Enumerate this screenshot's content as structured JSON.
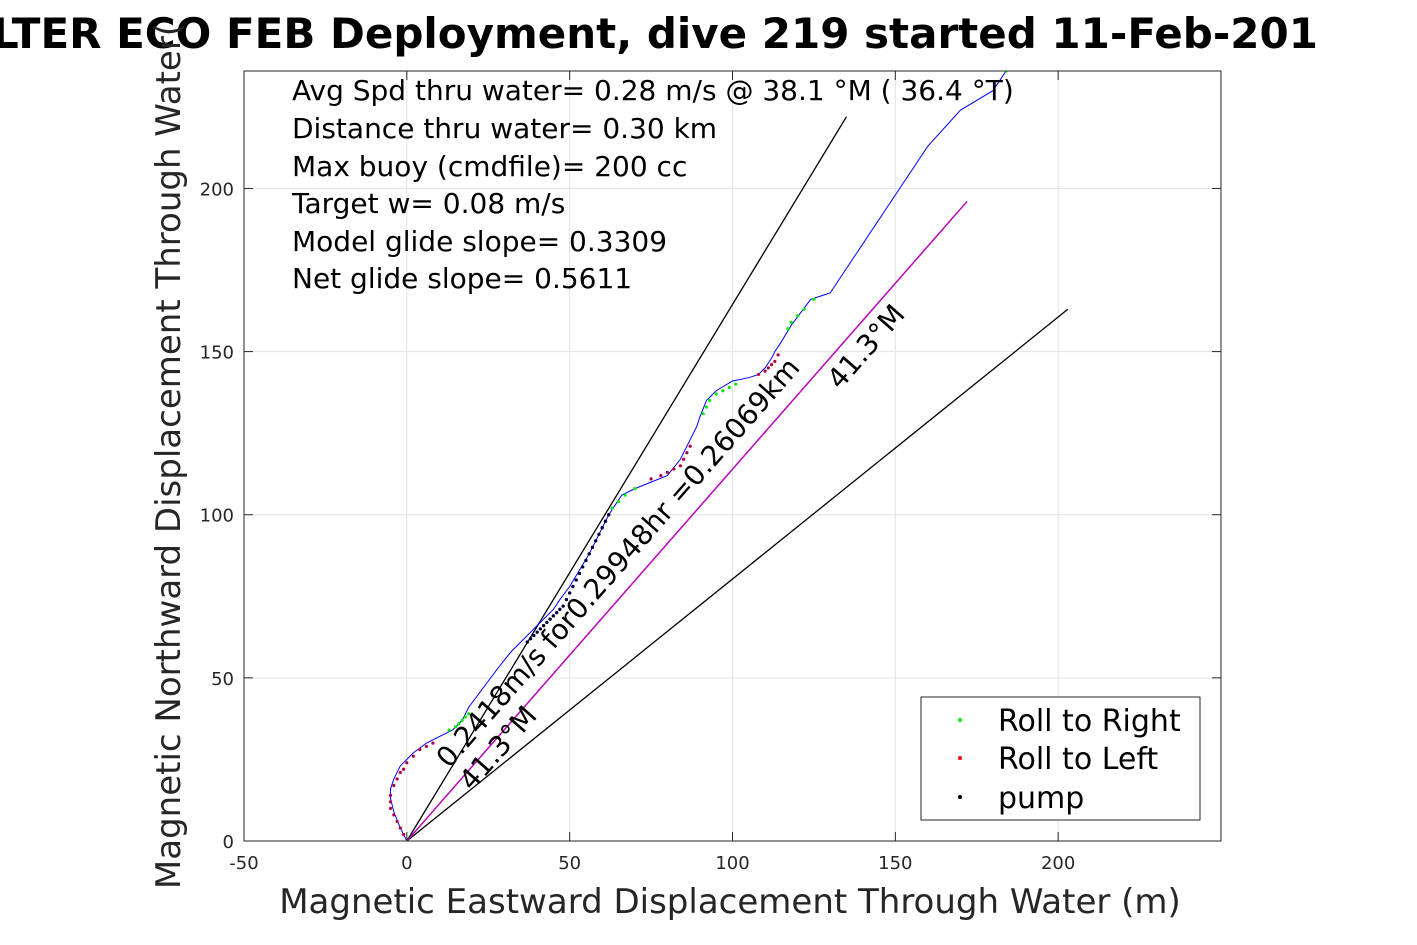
{
  "chart_data": {
    "type": "scatter",
    "title": "LTER ECO FEB Deployment, dive 219 started 11-Feb-201",
    "xlabel": "Magnetic Eastward Displacement Through Water (m)",
    "ylabel": "Magnetic Northward Displacement Through Water(",
    "xlim": [
      -50,
      250
    ],
    "ylim": [
      0,
      236
    ],
    "xticks": [
      -50,
      0,
      50,
      100,
      150,
      200
    ],
    "yticks": [
      0,
      50,
      100,
      150,
      200
    ],
    "grid": true,
    "legend_position": "bottom-right",
    "info_lines": [
      "Avg Spd thru water=  0.28 m/s @  38.1 °M ( 36.4 °T)",
      "Distance thru water=  0.30 km",
      "Max buoy (cmdfile)= 200 cc",
      "Target w= 0.08 m/s",
      "Model glide slope= 0.3309",
      "Net glide slope= 0.5611"
    ],
    "annotations": [
      {
        "text": "0.2418m/s for0.29948hr =0.26069km",
        "x": 13,
        "y": 22,
        "angle_deg": 48.7
      },
      {
        "text": "41.3°M",
        "x": 20,
        "y": 15,
        "angle_deg": 48.7
      },
      {
        "text": "41.3°M",
        "x": 133,
        "y": 138,
        "angle_deg": 48.7
      }
    ],
    "reference_lines": [
      {
        "name": "steep",
        "x": [
          0,
          135
        ],
        "y": [
          0,
          222
        ],
        "color": "#000000"
      },
      {
        "name": "shallow",
        "x": [
          0,
          203
        ],
        "y": [
          0,
          163
        ],
        "color": "#000000"
      },
      {
        "name": "net",
        "x": [
          0,
          172
        ],
        "y": [
          0,
          196
        ],
        "color": "#000000"
      },
      {
        "name": "net-dup",
        "x": [
          0,
          172
        ],
        "y": [
          0,
          196
        ],
        "color": "#cc00cc"
      }
    ],
    "track": {
      "color": "#0000ff",
      "x": [
        0,
        -2,
        -4,
        -5,
        -5,
        -4,
        -2,
        2,
        6,
        10,
        14,
        17,
        19,
        22,
        25,
        28,
        32,
        36,
        38,
        40,
        42,
        45,
        47,
        50,
        53,
        56,
        58,
        60,
        62,
        64,
        66,
        70,
        75,
        80,
        84,
        87,
        89,
        90,
        92,
        95,
        100,
        105,
        108,
        110,
        112,
        113,
        115,
        118,
        121,
        124,
        127,
        130,
        140,
        150,
        160,
        170,
        180,
        184
      ],
      "y": [
        0,
        4,
        9,
        13,
        16,
        19,
        23,
        27,
        30,
        32,
        34,
        37,
        41,
        45,
        49,
        53,
        58,
        62,
        64,
        66,
        68,
        71,
        74,
        78,
        83,
        88,
        92,
        96,
        100,
        103,
        106,
        108,
        110,
        112,
        117,
        123,
        127,
        130,
        135,
        138,
        141,
        142,
        143,
        145,
        148,
        150,
        153,
        158,
        162,
        166,
        167,
        168,
        183,
        198,
        213,
        224,
        230,
        236
      ]
    },
    "series": [
      {
        "name": "Roll to Right",
        "color": "#00ee00",
        "x": [
          13,
          15,
          16,
          17,
          18,
          19,
          63,
          65,
          67,
          70,
          91,
          92,
          93,
          95,
          97,
          99,
          101,
          117,
          118,
          120,
          122,
          125,
          184
        ],
        "y": [
          34,
          35,
          36,
          37,
          38,
          39,
          102,
          104,
          106,
          108,
          131,
          133,
          135,
          137,
          138,
          139,
          140,
          157,
          159,
          161,
          163,
          166,
          236
        ]
      },
      {
        "name": "Roll to Left",
        "color": "#ff0000",
        "x": [
          -1,
          -2,
          -3,
          -4,
          -5,
          -5,
          -5,
          -4,
          -3,
          -2,
          -1,
          0,
          2,
          4,
          6,
          8,
          75,
          78,
          80,
          82,
          84,
          85,
          86,
          87,
          108,
          110,
          111,
          112,
          113,
          114
        ],
        "y": [
          2,
          4,
          6,
          8,
          10,
          12,
          14,
          17,
          19,
          21,
          22,
          24,
          26,
          28,
          29,
          30,
          111,
          112,
          113,
          114,
          115,
          117,
          119,
          121,
          143,
          144,
          145,
          146,
          147,
          149
        ]
      },
      {
        "name": "pump",
        "color": "#000000",
        "x": [
          37,
          38,
          39,
          40,
          41,
          42,
          43,
          44,
          45,
          46,
          47,
          48,
          49,
          50,
          51,
          52,
          53,
          54,
          55,
          56,
          57,
          58,
          59,
          60,
          61,
          62
        ],
        "y": [
          61,
          62,
          63,
          64,
          65,
          66,
          67,
          68,
          69,
          70,
          71,
          72,
          74,
          76,
          78,
          80,
          82,
          84,
          86,
          88,
          90,
          92,
          94,
          96,
          98,
          100
        ]
      }
    ]
  }
}
